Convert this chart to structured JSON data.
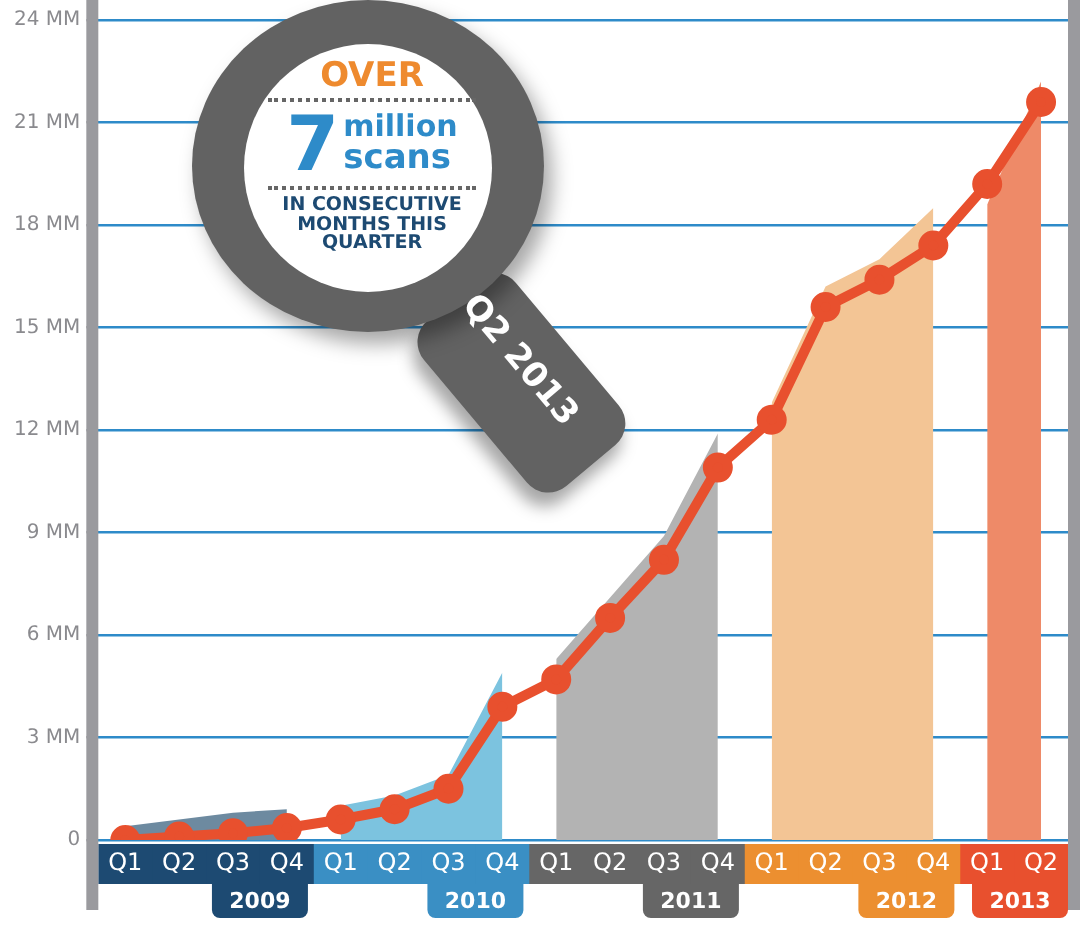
{
  "chart_data": {
    "type": "line",
    "categories": [
      "Q1",
      "Q2",
      "Q3",
      "Q4",
      "Q1",
      "Q2",
      "Q3",
      "Q4",
      "Q1",
      "Q2",
      "Q3",
      "Q4",
      "Q1",
      "Q2",
      "Q3",
      "Q4",
      "Q1",
      "Q2"
    ],
    "series": [
      {
        "type": "area",
        "color": "#6d8aa0",
        "values": [
          0.4,
          0.6,
          0.8,
          0.9,
          null,
          null,
          null,
          null,
          null,
          null,
          null,
          null,
          null,
          null,
          null,
          null,
          null,
          null
        ]
      },
      {
        "type": "area",
        "color": "#7cc3df",
        "values": [
          null,
          null,
          null,
          null,
          1.0,
          1.3,
          1.9,
          4.9,
          null,
          null,
          null,
          null,
          null,
          null,
          null,
          null,
          null,
          null
        ]
      },
      {
        "type": "area",
        "color": "#b3b3b3",
        "values": [
          null,
          null,
          null,
          null,
          null,
          null,
          null,
          null,
          5.3,
          7.1,
          8.9,
          11.9,
          null,
          null,
          null,
          null,
          null,
          null
        ]
      },
      {
        "type": "area",
        "color": "#f3c595",
        "values": [
          null,
          null,
          null,
          null,
          null,
          null,
          null,
          null,
          null,
          null,
          null,
          null,
          12.8,
          16.2,
          17.0,
          18.5,
          null,
          null
        ]
      },
      {
        "type": "area",
        "color": "#ee8a68",
        "values": [
          null,
          null,
          null,
          null,
          null,
          null,
          null,
          null,
          null,
          null,
          null,
          null,
          null,
          null,
          null,
          null,
          18.6,
          22.2
        ]
      },
      {
        "color": "#e8502e",
        "marker": "circle",
        "values": [
          0,
          0.1,
          0.2,
          0.35,
          0.6,
          0.9,
          1.5,
          3.9,
          4.7,
          6.5,
          8.2,
          10.9,
          12.3,
          15.6,
          16.4,
          17.4,
          19.2,
          21.6
        ]
      }
    ],
    "ylim": [
      0,
      24
    ],
    "yticks": [
      0,
      {
        "value": 3,
        "label": "3 MM"
      },
      {
        "value": 6,
        "label": "6 MM"
      },
      {
        "value": 9,
        "label": "9 MM"
      },
      {
        "value": 12,
        "label": "12 MM"
      },
      {
        "value": 15,
        "label": "15 MM"
      },
      {
        "value": 18,
        "label": "18 MM"
      },
      {
        "value": 21,
        "label": "21 MM"
      },
      {
        "value": 24,
        "label": "24 MM"
      }
    ],
    "grid": "y",
    "legend": false,
    "annotations": [
      "OVER",
      "7",
      "million",
      "scans",
      "IN CONSECUTIVE",
      "MONTHS THIS",
      "QUARTER",
      "Q2 2013",
      "2009",
      "2010",
      "2011",
      "2012",
      "2013"
    ]
  }
}
